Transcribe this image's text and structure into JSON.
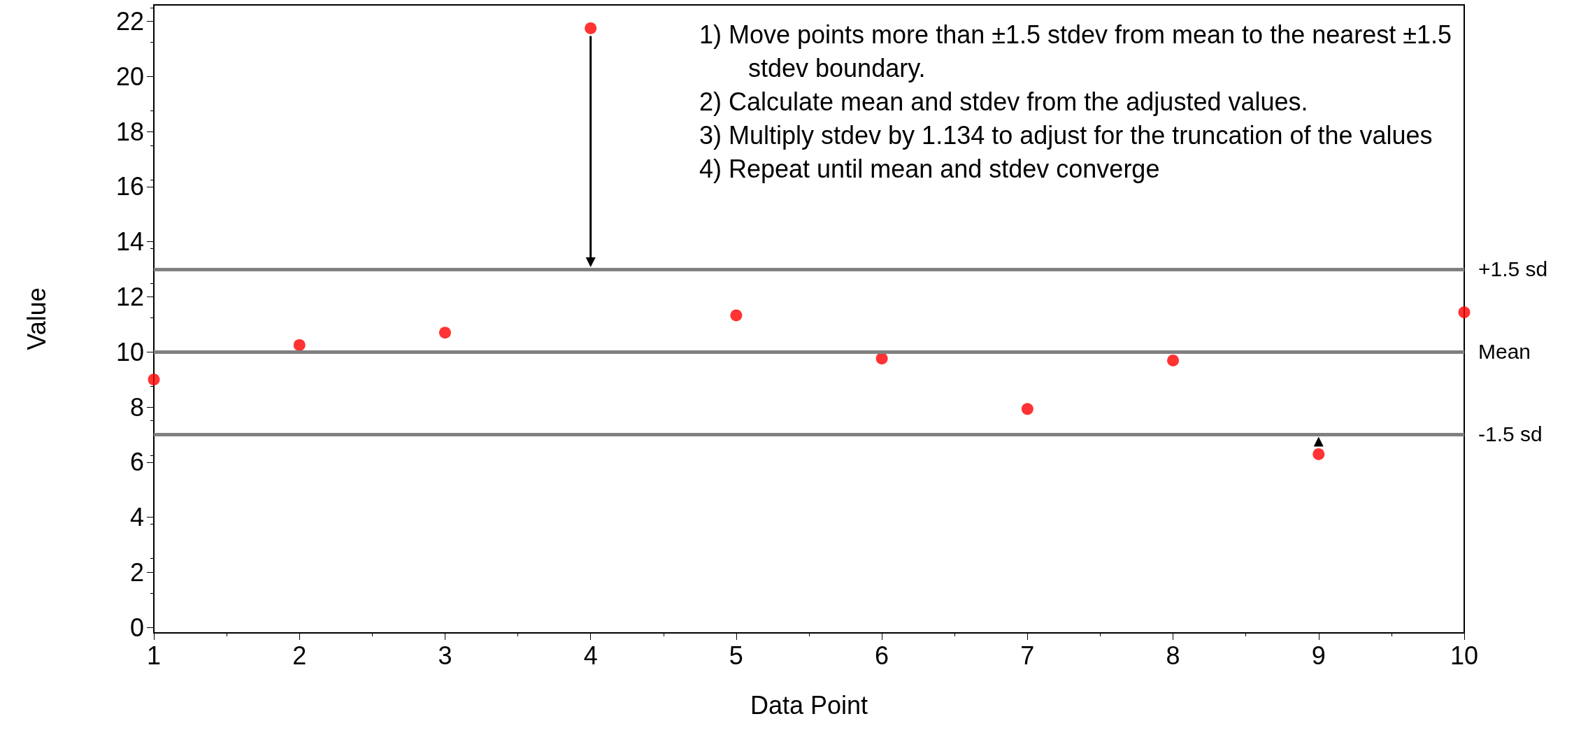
{
  "chart_data": {
    "type": "scatter",
    "xlabel": "Data Point",
    "ylabel": "Value",
    "x": [
      1,
      2,
      3,
      4,
      5,
      6,
      7,
      8,
      9,
      10
    ],
    "series": [
      {
        "color": "#ff0000",
        "values": [
          9.0,
          10.25,
          10.7,
          21.75,
          11.33,
          9.76,
          7.93,
          9.69,
          6.29,
          11.44
        ]
      }
    ],
    "xlim": [
      1,
      10
    ],
    "xticks": [
      1,
      2,
      3,
      4,
      5,
      6,
      7,
      8,
      9,
      10
    ],
    "ylim": [
      -0.2,
      22.6
    ],
    "yticks": [
      0,
      2,
      4,
      6,
      8,
      10,
      12,
      14,
      16,
      18,
      20,
      22
    ],
    "ref_lines": [
      {
        "axis": "y",
        "value": 13,
        "label": "+1.5 sd",
        "color": "#808080"
      },
      {
        "axis": "y",
        "value": 10,
        "label": "Mean",
        "color": "#808080"
      },
      {
        "axis": "y",
        "value": 7,
        "label": "-1.5 sd",
        "color": "#808080"
      }
    ],
    "annotations": [
      "1) Move points more than ±1.5 stdev from mean to the nearest ±1.5 stdev boundary.",
      "2) Calculate mean and stdev from the adjusted values.",
      "3) Multiply stdev by 1.134 to adjust for the truncation of the values",
      "4) Repeat until mean and stdev converge"
    ],
    "marker": "circle",
    "grid": false
  }
}
